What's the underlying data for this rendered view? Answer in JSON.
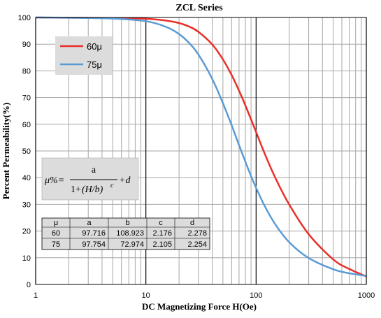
{
  "chart_data": {
    "type": "line",
    "title": "ZCL Series",
    "xlabel": "DC Magnetizing Force H(Oe)",
    "ylabel": "Percent Permeability(%)",
    "xscale": "log",
    "xlim": [
      1,
      1000
    ],
    "ylim": [
      0,
      100
    ],
    "x_ticks": [
      "1",
      "10",
      "100",
      "1000"
    ],
    "y_ticks": [
      "0",
      "10",
      "20",
      "30",
      "40",
      "50",
      "60",
      "70",
      "80",
      "90",
      "100"
    ],
    "grid": true,
    "legend_position": "top-left",
    "series": [
      {
        "name": "60μ",
        "color": "#e8302a",
        "x": [
          1,
          2,
          5,
          10,
          15,
          20,
          25,
          30,
          40,
          50,
          60,
          70,
          80,
          90,
          100,
          120,
          150,
          200,
          300,
          500,
          700,
          1000
        ],
        "y": [
          100,
          99.9,
          99.8,
          99.5,
          98.9,
          97.9,
          96.5,
          94.6,
          89.9,
          84.3,
          78.4,
          72.6,
          67.0,
          61.8,
          57.1,
          48.9,
          39.8,
          29.9,
          18.8,
          9.4,
          5.8,
          3.0
        ]
      },
      {
        "name": "75μ",
        "color": "#5b9bd5",
        "x": [
          1,
          2,
          5,
          10,
          15,
          20,
          25,
          30,
          40,
          50,
          60,
          70,
          80,
          90,
          100,
          120,
          150,
          200,
          300,
          500,
          700,
          1000
        ],
        "y": [
          100,
          99.9,
          99.6,
          98.6,
          96.6,
          93.8,
          90.2,
          86.1,
          77.0,
          67.9,
          59.6,
          52.2,
          45.9,
          40.6,
          36.2,
          29.3,
          22.4,
          15.8,
          9.9,
          5.7,
          4.2,
          3.2
        ]
      }
    ],
    "formula": {
      "lhs": "μ%=",
      "numerator": "a",
      "denominator_pre": "1+",
      "denominator_term": "(H/b)",
      "exponent": "c",
      "tail": "+d"
    },
    "coefficient_table": {
      "headers": [
        "μ",
        "a",
        "b",
        "c",
        "d"
      ],
      "rows": [
        [
          "60",
          "97.716",
          "108.923",
          "2.176",
          "2.278"
        ],
        [
          "75",
          "97.754",
          "72.974",
          "2.105",
          "2.254"
        ]
      ]
    }
  }
}
